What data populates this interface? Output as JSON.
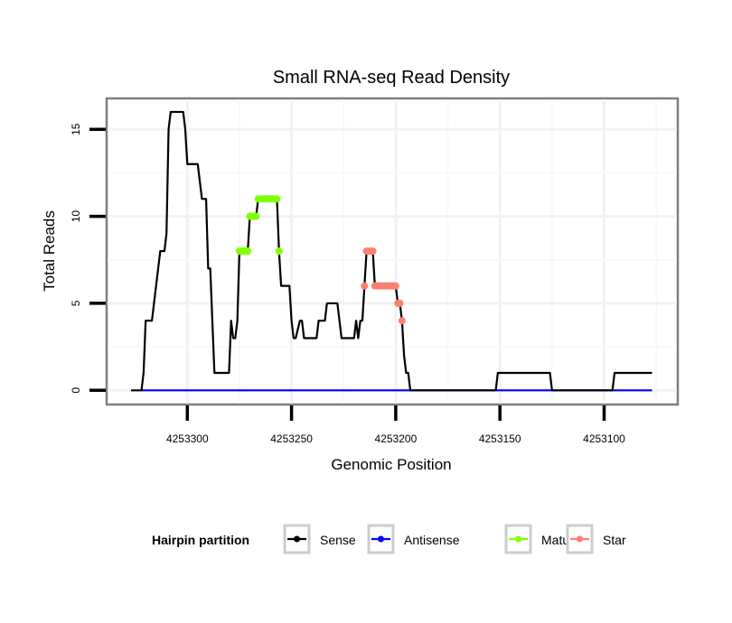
{
  "chart_data": {
    "type": "line",
    "title": "Small RNA-seq Read Density",
    "xlabel": "Genomic Position",
    "ylabel": "Total Reads",
    "x_reversed": true,
    "xlim": [
      4253332,
      4253072
    ],
    "ylim": [
      -0.8,
      16.8
    ],
    "x_ticks": [
      4253300,
      4253250,
      4253200,
      4253150,
      4253100
    ],
    "x_tick_labels": [
      "4253300",
      "4253250",
      "4253200",
      "4253150",
      "4253100"
    ],
    "y_ticks": [
      0,
      5,
      10,
      15
    ],
    "y_tick_labels": [
      "0",
      "5",
      "10",
      "15"
    ],
    "grid": true,
    "legend": {
      "title": "Hairpin partition",
      "placement": "bottom",
      "entries": [
        {
          "name": "Sense",
          "color": "#000000"
        },
        {
          "name": "Antisense",
          "color": "#0000ff"
        },
        {
          "name": "Mature",
          "color": "#7fff00"
        },
        {
          "name": "Star",
          "color": "#fa8072"
        }
      ]
    },
    "series": [
      {
        "name": "Sense",
        "color": "#000000",
        "style": "line",
        "points": [
          [
            4253327,
            0
          ],
          [
            4253322,
            0
          ],
          [
            4253321,
            1
          ],
          [
            4253320,
            4
          ],
          [
            4253317,
            4
          ],
          [
            4253316,
            5
          ],
          [
            4253315,
            6
          ],
          [
            4253314,
            7
          ],
          [
            4253313,
            8
          ],
          [
            4253311,
            8
          ],
          [
            4253310,
            9
          ],
          [
            4253309,
            15
          ],
          [
            4253308,
            16
          ],
          [
            4253302,
            16
          ],
          [
            4253301,
            15
          ],
          [
            4253300,
            13
          ],
          [
            4253295,
            13
          ],
          [
            4253294,
            12
          ],
          [
            4253293,
            11
          ],
          [
            4253291,
            11
          ],
          [
            4253290,
            7
          ],
          [
            4253289,
            7
          ],
          [
            4253288,
            4
          ],
          [
            4253287,
            1
          ],
          [
            4253280,
            1
          ],
          [
            4253279,
            4
          ],
          [
            4253278,
            3
          ],
          [
            4253277,
            3
          ],
          [
            4253276,
            4
          ],
          [
            4253275,
            8
          ],
          [
            4253271,
            8
          ],
          [
            4253270,
            10
          ],
          [
            4253267,
            10
          ],
          [
            4253266,
            11
          ],
          [
            4253257,
            11
          ],
          [
            4253256,
            8
          ],
          [
            4253255,
            6
          ],
          [
            4253251,
            6
          ],
          [
            4253250,
            4
          ],
          [
            4253249,
            3
          ],
          [
            4253248,
            3
          ],
          [
            4253246,
            4
          ],
          [
            4253245,
            4
          ],
          [
            4253244,
            3
          ],
          [
            4253238,
            3
          ],
          [
            4253237,
            4
          ],
          [
            4253234,
            4
          ],
          [
            4253233,
            5
          ],
          [
            4253228,
            5
          ],
          [
            4253227,
            4
          ],
          [
            4253226,
            3
          ],
          [
            4253220,
            3
          ],
          [
            4253219,
            4
          ],
          [
            4253218,
            3
          ],
          [
            4253217,
            4
          ],
          [
            4253216,
            4
          ],
          [
            4253215,
            6
          ],
          [
            4253214,
            8
          ],
          [
            4253211,
            8
          ],
          [
            4253210,
            6
          ],
          [
            4253200,
            6
          ],
          [
            4253199,
            5
          ],
          [
            4253198,
            5
          ],
          [
            4253197,
            4
          ],
          [
            4253196,
            2
          ],
          [
            4253195,
            1
          ],
          [
            4253194,
            1
          ],
          [
            4253193,
            0
          ],
          [
            4253152,
            0
          ],
          [
            4253151,
            1
          ],
          [
            4253126,
            1
          ],
          [
            4253125,
            0
          ],
          [
            4253096,
            0
          ],
          [
            4253095,
            1
          ],
          [
            4253077,
            1
          ]
        ]
      },
      {
        "name": "Antisense",
        "color": "#0000ff",
        "style": "line",
        "points": [
          [
            4253322,
            0
          ],
          [
            4253077,
            0
          ]
        ]
      },
      {
        "name": "Mature",
        "color": "#7fff00",
        "style": "points",
        "points": [
          [
            4253275,
            8
          ],
          [
            4253274,
            8
          ],
          [
            4253273,
            8
          ],
          [
            4253272,
            8
          ],
          [
            4253271,
            8
          ],
          [
            4253270,
            10
          ],
          [
            4253269,
            10
          ],
          [
            4253268,
            10
          ],
          [
            4253267,
            10
          ],
          [
            4253266,
            11
          ],
          [
            4253265,
            11
          ],
          [
            4253264,
            11
          ],
          [
            4253263,
            11
          ],
          [
            4253262,
            11
          ],
          [
            4253261,
            11
          ],
          [
            4253260,
            11
          ],
          [
            4253259,
            11
          ],
          [
            4253258,
            11
          ],
          [
            4253257,
            11
          ],
          [
            4253256,
            8
          ]
        ]
      },
      {
        "name": "Star",
        "color": "#fa8072",
        "style": "points",
        "points": [
          [
            4253215,
            6
          ],
          [
            4253214,
            8
          ],
          [
            4253213,
            8
          ],
          [
            4253212,
            8
          ],
          [
            4253211,
            8
          ],
          [
            4253210,
            6
          ],
          [
            4253209,
            6
          ],
          [
            4253208,
            6
          ],
          [
            4253207,
            6
          ],
          [
            4253206,
            6
          ],
          [
            4253205,
            6
          ],
          [
            4253204,
            6
          ],
          [
            4253203,
            6
          ],
          [
            4253202,
            6
          ],
          [
            4253201,
            6
          ],
          [
            4253200,
            6
          ],
          [
            4253199,
            5
          ],
          [
            4253198,
            5
          ],
          [
            4253197,
            4
          ]
        ]
      }
    ]
  }
}
